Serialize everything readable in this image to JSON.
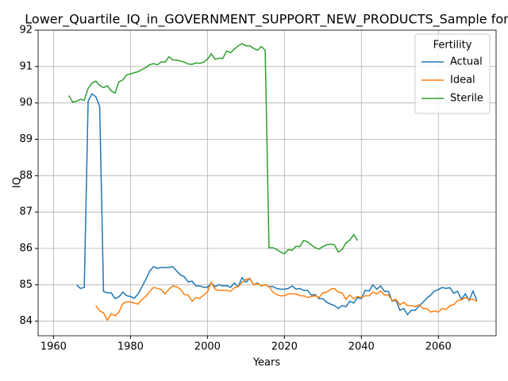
{
  "chart_data": {
    "type": "line",
    "title": "Lower_Quartile_IQ_in_GOVERNMENT_SUPPORT_NEW_PRODUCTS_Sample for",
    "xlabel": "Years",
    "ylabel": "IQ",
    "legend_title": "Fertility",
    "legend": "upper right",
    "grid": true,
    "xlim": [
      1956,
      2075
    ],
    "ylim": [
      83.6,
      92.0
    ],
    "xticks": [
      1960,
      1980,
      2000,
      2020,
      2040,
      2060
    ],
    "yticks": [
      84,
      85,
      86,
      87,
      88,
      89,
      90,
      91,
      92
    ],
    "x": [
      1964,
      1965,
      1966,
      1967,
      1968,
      1969,
      1970,
      1971,
      1972,
      1973,
      1974,
      1975,
      1976,
      1977,
      1978,
      1979,
      1980,
      1981,
      1982,
      1983,
      1984,
      1985,
      1986,
      1987,
      1988,
      1989,
      1990,
      1991,
      1992,
      1993,
      1994,
      1995,
      1996,
      1997,
      1998,
      1999,
      2000,
      2001,
      2002,
      2003,
      2004,
      2005,
      2006,
      2007,
      2008,
      2009,
      2010,
      2011,
      2012,
      2013,
      2014,
      2015,
      2016,
      2017,
      2018,
      2019,
      2020,
      2021,
      2022,
      2023,
      2024,
      2025,
      2026,
      2027,
      2028,
      2029,
      2030,
      2031,
      2032,
      2033,
      2034,
      2035,
      2036,
      2037,
      2038,
      2039,
      2040,
      2041,
      2042,
      2043,
      2044,
      2045,
      2046,
      2047,
      2048,
      2049,
      2050,
      2051,
      2052,
      2053,
      2054,
      2055,
      2056,
      2057,
      2058,
      2059,
      2060,
      2061,
      2062,
      2063,
      2064,
      2065,
      2066,
      2067,
      2068,
      2069,
      2070
    ],
    "series": [
      {
        "name": "Actual",
        "color": "#1f77b4",
        "values": [
          null,
          null,
          85.0,
          84.9,
          84.93,
          90.05,
          90.25,
          90.17,
          89.9,
          84.82,
          84.78,
          84.78,
          84.62,
          84.67,
          84.8,
          84.7,
          84.68,
          84.63,
          84.75,
          84.95,
          85.15,
          85.38,
          85.5,
          85.45,
          85.48,
          85.47,
          85.48,
          85.5,
          85.38,
          85.27,
          85.22,
          85.08,
          85.1,
          84.97,
          84.97,
          84.93,
          84.93,
          85.05,
          84.95,
          85.0,
          84.97,
          84.98,
          84.93,
          85.05,
          84.95,
          85.2,
          85.07,
          85.18,
          85.0,
          85.05,
          84.97,
          85.0,
          84.95,
          84.95,
          84.9,
          84.88,
          84.88,
          84.9,
          84.97,
          84.88,
          84.9,
          84.85,
          84.85,
          84.72,
          84.73,
          84.62,
          84.62,
          84.52,
          84.47,
          84.43,
          84.35,
          84.43,
          84.4,
          84.55,
          84.5,
          84.65,
          84.62,
          84.85,
          84.83,
          85.0,
          84.88,
          84.97,
          84.82,
          84.82,
          84.55,
          84.58,
          84.3,
          84.35,
          84.18,
          84.3,
          84.3,
          84.42,
          84.52,
          84.63,
          84.72,
          84.83,
          84.87,
          84.93,
          84.9,
          84.92,
          84.77,
          84.82,
          84.6,
          84.75,
          84.57,
          84.83,
          84.57
        ]
      },
      {
        "name": "Ideal",
        "color": "#ff7f0e",
        "values": [
          null,
          null,
          null,
          null,
          null,
          null,
          null,
          84.43,
          84.28,
          84.23,
          84.03,
          84.2,
          84.15,
          84.25,
          84.48,
          84.53,
          84.53,
          84.5,
          84.47,
          84.6,
          84.68,
          84.82,
          84.93,
          84.9,
          84.87,
          84.75,
          84.88,
          84.97,
          84.95,
          84.88,
          84.73,
          84.72,
          84.55,
          84.65,
          84.63,
          84.72,
          84.8,
          85.07,
          84.87,
          84.85,
          84.85,
          84.85,
          84.82,
          84.92,
          84.95,
          85.07,
          85.15,
          85.17,
          85.0,
          85.03,
          84.98,
          85.0,
          84.95,
          84.8,
          84.73,
          84.7,
          84.7,
          84.75,
          84.75,
          84.75,
          84.7,
          84.7,
          84.65,
          84.68,
          84.7,
          84.65,
          84.78,
          84.8,
          84.88,
          84.9,
          84.8,
          84.78,
          84.6,
          84.72,
          84.62,
          84.68,
          84.65,
          84.7,
          84.7,
          84.8,
          84.75,
          84.83,
          84.72,
          84.72,
          84.57,
          84.6,
          84.45,
          84.52,
          84.43,
          84.43,
          84.4,
          84.45,
          84.35,
          84.35,
          84.25,
          84.28,
          84.25,
          84.35,
          84.32,
          84.43,
          84.45,
          84.57,
          84.58,
          84.65,
          84.6,
          84.6,
          84.55
        ]
      },
      {
        "name": "Sterile",
        "color": "#2ca02c",
        "values": [
          90.2,
          90.02,
          90.05,
          90.1,
          90.07,
          90.4,
          90.55,
          90.6,
          90.48,
          90.42,
          90.47,
          90.33,
          90.27,
          90.58,
          90.63,
          90.77,
          90.8,
          90.83,
          90.86,
          90.92,
          90.97,
          91.05,
          91.08,
          91.05,
          91.13,
          91.12,
          91.27,
          91.18,
          91.18,
          91.15,
          91.12,
          91.07,
          91.06,
          91.1,
          91.09,
          91.12,
          91.2,
          91.35,
          91.2,
          91.23,
          91.22,
          91.43,
          91.38,
          91.48,
          91.57,
          91.63,
          91.57,
          91.57,
          91.5,
          91.45,
          91.55,
          91.45,
          86.02,
          86.02,
          85.97,
          85.9,
          85.85,
          85.97,
          85.95,
          86.06,
          86.05,
          86.22,
          86.18,
          86.1,
          86.02,
          85.98,
          86.05,
          86.1,
          86.12,
          86.1,
          85.9,
          85.97,
          86.15,
          86.23,
          86.38,
          86.22,
          null,
          null,
          null,
          null,
          null,
          null,
          null,
          null,
          null,
          null,
          null,
          null,
          null,
          null,
          null,
          null,
          null,
          null,
          null,
          null,
          null,
          null,
          null,
          null,
          null,
          null,
          null,
          null,
          null,
          null,
          null
        ]
      }
    ]
  }
}
